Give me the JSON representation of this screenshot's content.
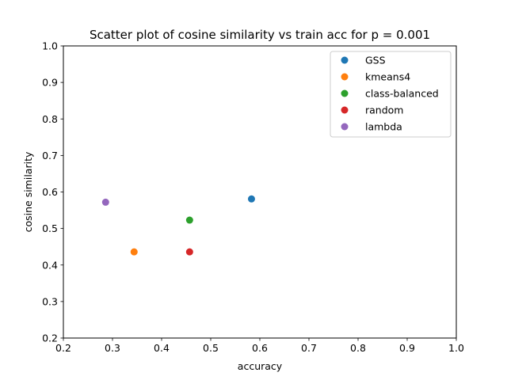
{
  "chart_data": {
    "type": "scatter",
    "title": "Scatter plot of cosine similarity vs train acc for p = 0.001",
    "xlabel": "accuracy",
    "ylabel": "cosine similarity",
    "xlim": [
      0.2,
      1.0
    ],
    "ylim": [
      0.2,
      1.0
    ],
    "xticks": [
      "0.2",
      "0.3",
      "0.4",
      "0.5",
      "0.6",
      "0.7",
      "0.8",
      "0.9",
      "1.0"
    ],
    "yticks": [
      "0.2",
      "0.3",
      "0.4",
      "0.5",
      "0.6",
      "0.7",
      "0.8",
      "0.9",
      "1.0"
    ],
    "grid": false,
    "legend_position": "top-right",
    "series": [
      {
        "name": "GSS",
        "color": "#1f77b4",
        "x": [
          0.583
        ],
        "y": [
          0.581
        ]
      },
      {
        "name": "kmeans4",
        "color": "#ff7f0e",
        "x": [
          0.344
        ],
        "y": [
          0.436
        ]
      },
      {
        "name": "class-balanced",
        "color": "#2ca02c",
        "x": [
          0.457
        ],
        "y": [
          0.523
        ]
      },
      {
        "name": "random",
        "color": "#d62728",
        "x": [
          0.457
        ],
        "y": [
          0.436
        ]
      },
      {
        "name": "lambda",
        "color": "#9467bd",
        "x": [
          0.286
        ],
        "y": [
          0.572
        ]
      }
    ]
  }
}
